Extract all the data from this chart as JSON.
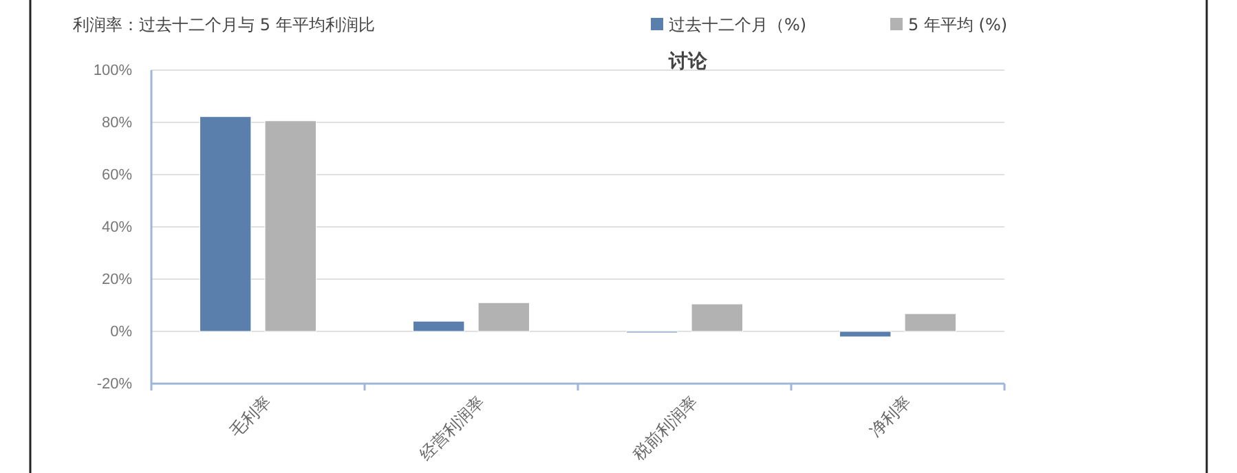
{
  "chart_data": {
    "type": "bar",
    "title": "利润率：过去十二个月与 5 年平均利润比",
    "subtitle": "讨论",
    "categories": [
      "毛利率",
      "经营利润率",
      "税前利润率",
      "净利率"
    ],
    "series": [
      {
        "name": "过去十二个月（%)",
        "color": "#5b7fac",
        "values": [
          82.2,
          3.9,
          -0.5,
          -2.1
        ]
      },
      {
        "name": "5 年平均 (%)",
        "color": "#b2b2b2",
        "values": [
          80.6,
          11,
          10.5,
          6.8
        ]
      }
    ],
    "ylim": [
      -20,
      100
    ],
    "yticks": [
      {
        "value": -20,
        "label": "-20%"
      },
      {
        "value": 0,
        "label": "0%"
      },
      {
        "value": 20,
        "label": "20%"
      },
      {
        "value": 40,
        "label": "40%"
      },
      {
        "value": 60,
        "label": "60%"
      },
      {
        "value": 80,
        "label": "80%"
      },
      {
        "value": 100,
        "label": "100%"
      }
    ],
    "grid": "y",
    "legend": "top right"
  }
}
